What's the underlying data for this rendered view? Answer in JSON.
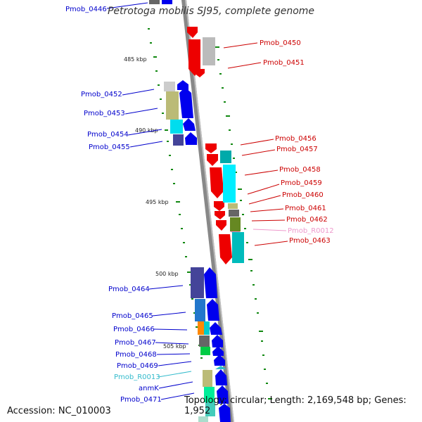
{
  "title": "Petrotoga mobilis SJ95, complete genome",
  "accession": "Accession: NC_010003",
  "topology": "Topology: circular; Length: 2,169,548 bp; Genes: 1,952",
  "colors": {
    "forward_label": "#0000cc",
    "reverse_label": "#cc0000",
    "rna_label_forward": "#33bbcc",
    "rna_label_reverse": "#ee99cc",
    "backbone": "#888888",
    "tick": "#118811"
  },
  "kbp_marks": [
    "485 kbp",
    "490 kbp",
    "495 kbp",
    "500 kbp",
    "505 kbp"
  ],
  "labels": {
    "top_partial": "Pmob_0446",
    "p0450": "Pmob_0450",
    "p0451": "Pmob_0451",
    "p0452": "Pmob_0452",
    "p0453": "Pmob_0453",
    "p0454": "Pmob_0454",
    "p0455": "Pmob_0455",
    "p0456": "Pmob_0456",
    "p0457": "Pmob_0457",
    "p0458": "Pmob_0458",
    "p0459": "Pmob_0459",
    "p0460": "Pmob_0460",
    "p0461": "Pmob_0461",
    "p0462": "Pmob_0462",
    "r0012": "Pmob_R0012",
    "p0463": "Pmob_0463",
    "p0464": "Pmob_0464",
    "p0465": "Pmob_0465",
    "p0466": "Pmob_0466",
    "p0467": "Pmob_0467",
    "p0468": "Pmob_0468",
    "p0469": "Pmob_0469",
    "r0013": "Pmob_R0013",
    "anmk": "anmK",
    "p0471": "Pmob_0471"
  }
}
